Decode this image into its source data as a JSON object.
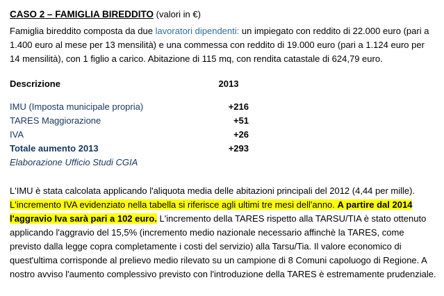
{
  "title": {
    "main": "CASO 2 – FAMIGLIA BIREDDITO",
    "suffix": " (valori in €)"
  },
  "intro": {
    "pre": "Famiglia bireddito composta da due ",
    "link": "lavoratori dipendenti:",
    "post": " un impiegato con reddito di 22.000 euro (pari a 1.400 euro al mese per 13 mensilità) e una commessa con reddito di 19.000 euro (pari a 1.124 euro per 14 mensilità), con 1 figlio a carico. Abitazione di 115 mq, con rendita catastale di 624,79 euro."
  },
  "table": {
    "header": {
      "description": "Descrizione",
      "year": "2013"
    },
    "rows": [
      {
        "label": "IMU (Imposta municipale propria)",
        "value": "+216"
      },
      {
        "label": "TARES Maggiorazione",
        "value": "+51"
      },
      {
        "label": "IVA",
        "value": "+26"
      }
    ],
    "total": {
      "label": "Totale aumento 2013",
      "value": "+293"
    },
    "source": "Elaborazione Ufficio Studi CGIA"
  },
  "analysis": {
    "part1": "L'IMU è stata calcolata applicando l'aliquota media delle abitazioni principali del 2012 (4,44 per mille). ",
    "highlight_regular": "L'incremento IVA evidenziato nella tabella si riferisce agli ultimi tre mesi dell'anno. ",
    "highlight_bold": "A partire dal 2014 l'aggravio Iva sarà pari a 102 euro.",
    "part2": " L'incremento della TARES rispetto alla TARSU/TIA è stato ottenuto applicando l'aggravio del 15,5% (incremento medio nazionale necessario affinchè la TARES, come previsto dalla legge copra completamente i costi del servizio) alla Tarsu/Tia. Il valore economico di quest'ultima corrisponde al prelievo medio rilevato su un campione di 8 Comuni capoluogo di Regione. A nostro avviso l'aumento complessivo previsto con l'introduzione della TARES è estremamente prudenziale."
  },
  "colors": {
    "link_blue": "#2e6e9e",
    "table_navy": "#17365d",
    "highlight_yellow": "#ffff00",
    "text": "#000000"
  }
}
